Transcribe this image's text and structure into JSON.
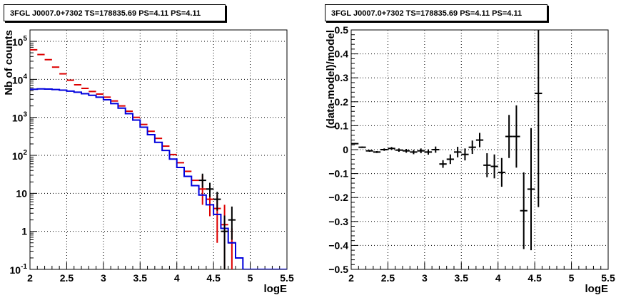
{
  "chart_data": [
    {
      "type": "line",
      "title": "3FGL J0007.0+7302 TS=178835.69 PS=4.11 PS=4.11",
      "xlabel": "logE",
      "ylabel": "Nb of counts",
      "xlim": [
        2,
        5.5
      ],
      "ylim": [
        0.1,
        200000
      ],
      "yscale": "log",
      "grid": true,
      "x_ticks": [
        "2",
        "2.5",
        "3",
        "3.5",
        "4",
        "4.5",
        "5",
        "5.5"
      ],
      "y_ticks": [
        "10^-1",
        "1",
        "10",
        "10^2",
        "10^3",
        "10^4",
        "10^5"
      ],
      "series": [
        {
          "style": "step-red-markers",
          "color": "#dd0000",
          "x": [
            2.05,
            2.15,
            2.25,
            2.35,
            2.45,
            2.55,
            2.65,
            2.75,
            2.85,
            2.95,
            3.05,
            3.15,
            3.25,
            3.35,
            3.45,
            3.55,
            3.65,
            3.75,
            3.85,
            3.95,
            4.05,
            4.15,
            4.25,
            4.35,
            4.45,
            4.55,
            4.65,
            4.75
          ],
          "values": [
            60000,
            45000,
            33000,
            21000,
            14000,
            9500,
            7200,
            5800,
            4800,
            4100,
            3400,
            2700,
            2000,
            1450,
            1000,
            650,
            430,
            280,
            175,
            105,
            64,
            38,
            22,
            13,
            7,
            4,
            1.5,
            0.5
          ],
          "errors": [
            null,
            null,
            null,
            null,
            null,
            null,
            null,
            null,
            null,
            null,
            null,
            null,
            null,
            null,
            null,
            null,
            null,
            null,
            null,
            null,
            null,
            null,
            null,
            [
              5,
              30
            ],
            [
              2.5,
              13
            ],
            [
              0.5,
              9
            ],
            [
              0.1,
              5
            ],
            [
              0.1,
              1.2
            ]
          ]
        },
        {
          "style": "step-blue",
          "color": "#0000dd",
          "x": [
            2.05,
            2.15,
            2.25,
            2.35,
            2.45,
            2.55,
            2.65,
            2.75,
            2.85,
            2.95,
            3.05,
            3.15,
            3.25,
            3.35,
            3.45,
            3.55,
            3.65,
            3.75,
            3.85,
            3.95,
            4.05,
            4.15,
            4.25,
            4.35,
            4.45,
            4.55,
            4.65,
            4.75,
            4.85,
            4.95,
            5.05,
            5.15,
            5.25,
            5.35,
            5.45
          ],
          "values": [
            5500,
            5600,
            5550,
            5400,
            5200,
            4900,
            4600,
            4200,
            3800,
            3400,
            2900,
            2300,
            1750,
            1250,
            850,
            550,
            350,
            220,
            135,
            80,
            48,
            28,
            16,
            9,
            5,
            2.8,
            1.2,
            0.5,
            0.2,
            0.1,
            0.1,
            0.1,
            0.1,
            0.1,
            0.1
          ]
        },
        {
          "style": "points-black",
          "color": "#000000",
          "x": [
            4.35,
            4.45,
            4.55,
            4.65,
            4.75
          ],
          "values": [
            22,
            13,
            7,
            1,
            2
          ],
          "errors": [
            [
              14,
              33
            ],
            [
              8,
              19
            ],
            [
              3.5,
              11
            ],
            [
              0.1,
              2.6
            ],
            [
              0.6,
              4.5
            ]
          ],
          "x_halfwidth": 0.05
        }
      ]
    },
    {
      "type": "scatter",
      "title": "3FGL J0007.0+7302 TS=178835.69 PS=4.11 PS=4.11",
      "xlabel": "logE",
      "ylabel": "(data-model)/model",
      "xlim": [
        2,
        5.5
      ],
      "ylim": [
        -0.5,
        0.5
      ],
      "grid": true,
      "x_ticks": [
        "2",
        "2.5",
        "3",
        "3.5",
        "4",
        "4.5",
        "5",
        "5.5"
      ],
      "y_ticks": [
        "−0.5",
        "−0.4",
        "−0.3",
        "−0.2",
        "−0.1",
        "0",
        "0.1",
        "0.2",
        "0.3",
        "0.4",
        "0.5"
      ],
      "series": [
        {
          "color": "#000000",
          "x": [
            2.05,
            2.15,
            2.25,
            2.35,
            2.45,
            2.55,
            2.65,
            2.75,
            2.85,
            2.95,
            3.05,
            3.15,
            3.25,
            3.35,
            3.45,
            3.55,
            3.65,
            3.75,
            3.85,
            3.95,
            4.05,
            4.15,
            4.25,
            4.35,
            4.45,
            4.55
          ],
          "values": [
            0.025,
            0.01,
            -0.005,
            -0.01,
            0.0,
            0.005,
            -0.002,
            -0.005,
            -0.01,
            -0.005,
            -0.01,
            0.0,
            -0.06,
            -0.04,
            -0.01,
            -0.02,
            0.01,
            0.04,
            -0.065,
            -0.07,
            -0.095,
            0.055,
            0.055,
            -0.255,
            -0.165,
            0.235
          ],
          "errors": [
            0.003,
            0.003,
            0.004,
            0.004,
            0.005,
            0.006,
            0.007,
            0.008,
            0.009,
            0.01,
            0.011,
            0.013,
            0.016,
            0.02,
            0.022,
            0.025,
            0.028,
            0.03,
            0.05,
            0.05,
            0.06,
            0.09,
            0.13,
            0.16,
            0.255,
            0.475
          ],
          "x_halfwidth": 0.05
        }
      ]
    }
  ]
}
